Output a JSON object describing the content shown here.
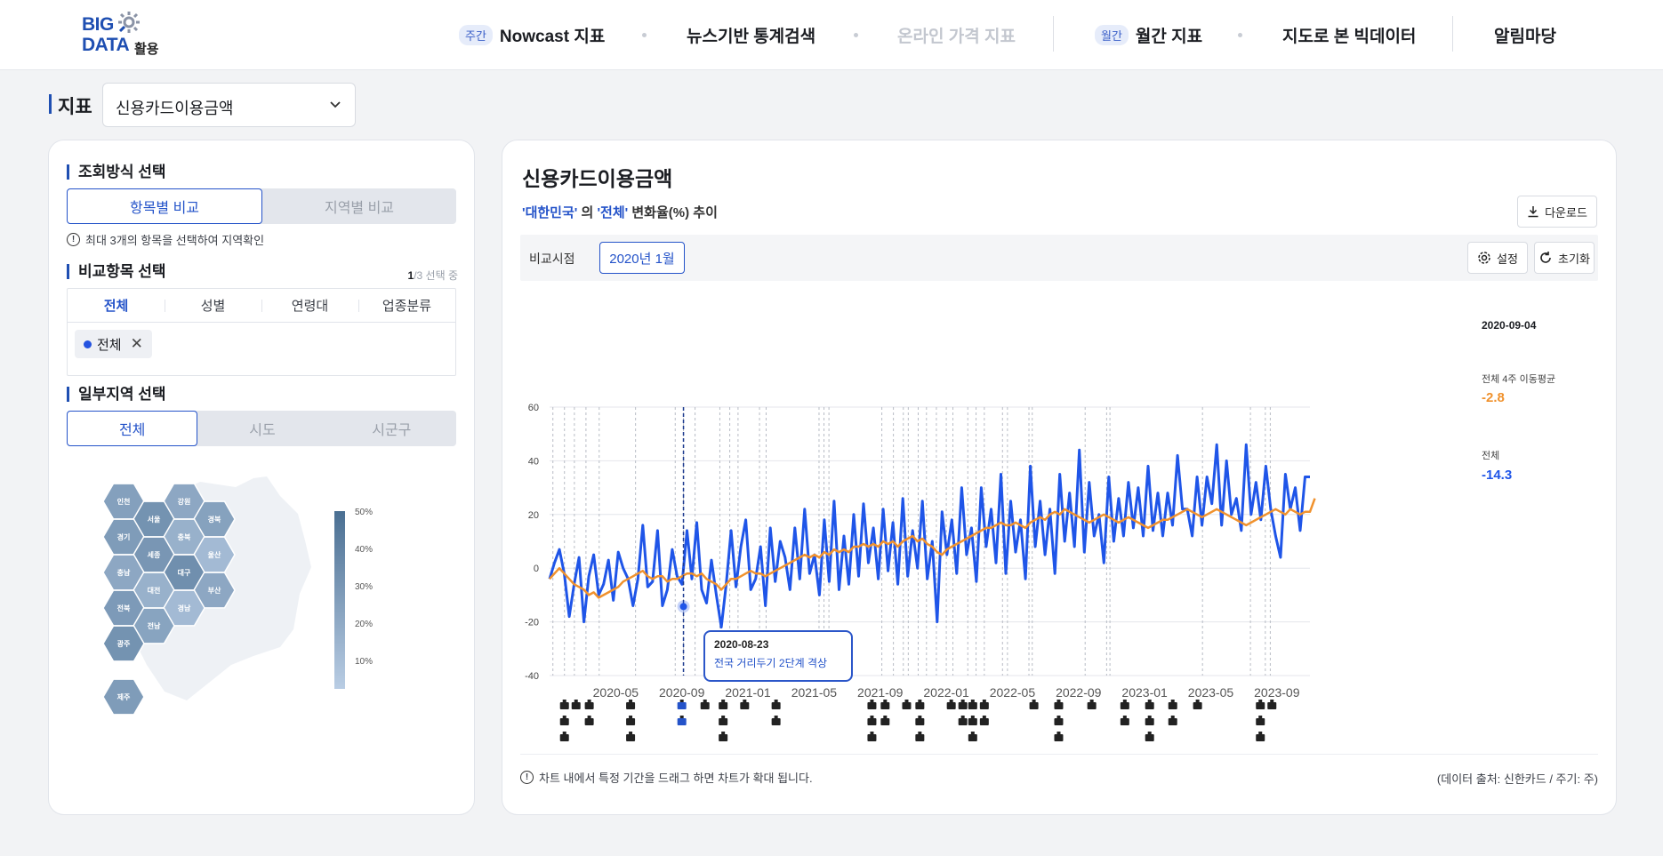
{
  "header": {
    "logo_big": "BIG",
    "logo_data": "DATA",
    "logo_suffix": "활용",
    "nav": [
      {
        "pill": "주간",
        "label": "Nowcast 지표"
      },
      {
        "label": "뉴스기반 통계검색"
      },
      {
        "label": "온라인 가격 지표"
      },
      {
        "pill": "월간",
        "label": "월간 지표"
      },
      {
        "label": "지도로 본 빅데이터"
      },
      {
        "label": "알림마당"
      }
    ]
  },
  "indicator": {
    "label": "지표",
    "selected": "신용카드이용금액"
  },
  "left": {
    "query_title": "조회방식 선택",
    "query_options": [
      "항목별 비교",
      "지역별 비교"
    ],
    "query_note": "최대 3개의 항목을 선택하여 지역확인",
    "compare_title": "비교항목 선택",
    "count_current": "1",
    "count_rest": "/3 선택 중",
    "compare_tabs": [
      "전체",
      "성별",
      "연령대",
      "업종분류"
    ],
    "chip_label": "전체",
    "region_title": "일부지역 선택",
    "region_options": [
      "전체",
      "시도",
      "시군구"
    ],
    "map": {
      "regions": [
        {
          "name": "인천",
          "level": 0.48
        },
        {
          "name": "강원",
          "level": 0.4
        },
        {
          "name": "서울",
          "level": 0.62
        },
        {
          "name": "경북",
          "level": 0.46
        },
        {
          "name": "경기",
          "level": 0.52
        },
        {
          "name": "충북",
          "level": 0.3
        },
        {
          "name": "세종",
          "level": 0.58
        },
        {
          "name": "울산",
          "level": 0.2
        },
        {
          "name": "충남",
          "level": 0.4
        },
        {
          "name": "대구",
          "level": 0.66
        },
        {
          "name": "대전",
          "level": 0.3
        },
        {
          "name": "부산",
          "level": 0.4
        },
        {
          "name": "전북",
          "level": 0.54
        },
        {
          "name": "경남",
          "level": 0.2
        },
        {
          "name": "전남",
          "level": 0.44
        },
        {
          "name": "광주",
          "level": 0.62
        },
        {
          "name": "제주",
          "level": 0.52
        }
      ],
      "scale_labels": [
        "50%",
        "40%",
        "30%",
        "20%",
        "10%"
      ]
    }
  },
  "right": {
    "title": "신용카드이용금액",
    "subtitle_region": "'대한민국'",
    "subtitle_mid": " 의 ",
    "subtitle_item": "'전체'",
    "subtitle_rest": " 변화율(%) 추이",
    "download_label": "다운로드",
    "compare_label": "비교시점",
    "compare_value": "2020년 1월",
    "settings_label": "설정",
    "reset_label": "초기화",
    "tooltip_date": "2020-08-23",
    "tooltip_text": "전국 거리두기 2단계 격상",
    "legend_date": "2020-09-04",
    "legend_ma_label": "전체 4주 이동평균",
    "legend_ma_value": "-2.8",
    "legend_total_label": "전체",
    "legend_total_value": "-14.3",
    "footer_note": "차트 내에서 특정 기간을 드래그 하면 차트가 확대 됩니다.",
    "footer_source": "(데이터 출처: 신한카드 / 주기: 주)"
  },
  "colors": {
    "accent": "#2453c9",
    "weekly": "#1f55e8",
    "moving_avg": "#f0922e",
    "map_high": "#4a6f92",
    "map_low": "#b9cde4"
  },
  "chart_data": {
    "type": "line",
    "xlabel": "",
    "ylabel": "",
    "ylim": [
      -40,
      60
    ],
    "yticks": [
      60,
      40,
      20,
      0,
      -20,
      -40
    ],
    "xtick_labels": [
      "2020-05",
      "2020-09",
      "2021-01",
      "2021-05",
      "2021-09",
      "2022-01",
      "2022-05",
      "2022-09",
      "2023-01",
      "2023-05",
      "2023-09"
    ],
    "x_start": "2020-01",
    "x_end": "2023-11",
    "series": [
      {
        "name": "전체",
        "color": "#1f55e8",
        "values": [
          -4,
          2,
          7,
          -2,
          -18,
          -6,
          4,
          -20,
          -3,
          5,
          -10,
          -6,
          3,
          -12,
          6,
          0,
          -4,
          -14,
          -4,
          16,
          -7,
          -5,
          14,
          -14,
          -8,
          7,
          -3,
          -6,
          14,
          -4,
          17,
          -8,
          -13,
          3,
          -10,
          -22,
          -6,
          14,
          -7,
          8,
          18,
          -8,
          -4,
          8,
          -14,
          15,
          -5,
          10,
          4,
          -8,
          15,
          -4,
          22,
          -2,
          5,
          -10,
          18,
          -5,
          25,
          -8,
          12,
          -6,
          20,
          -3,
          24,
          2,
          15,
          -4,
          22,
          -1,
          17,
          -6,
          26,
          -3,
          14,
          0,
          25,
          -4,
          10,
          -20,
          21,
          5,
          18,
          -2,
          30,
          5,
          15,
          -5,
          30,
          8,
          22,
          2,
          35,
          -2,
          25,
          6,
          18,
          -4,
          38,
          8,
          25,
          5,
          22,
          -2,
          35,
          10,
          28,
          8,
          44,
          6,
          32,
          12,
          20,
          2,
          34,
          10,
          26,
          12,
          32,
          15,
          30,
          12,
          38,
          14,
          28,
          12,
          28,
          16,
          42,
          22,
          22,
          12,
          34,
          16,
          34,
          24,
          46,
          16,
          40,
          20,
          26,
          14,
          46,
          20,
          32,
          18,
          38,
          22,
          12,
          4,
          35,
          22,
          30,
          14,
          34,
          34
        ],
        "highlighted_point": {
          "x": "2020-09-04",
          "y": -14.3
        }
      },
      {
        "name": "전체 4주 이동평균",
        "color": "#f0922e",
        "values": [
          -4,
          -2,
          0,
          -2,
          -4,
          -6,
          -7,
          -8,
          -10,
          -9,
          -11,
          -10,
          -9,
          -8,
          -7,
          -5,
          -4,
          -3,
          -2,
          -1,
          -3,
          -4,
          -3,
          -3,
          -5,
          -4,
          -4,
          -3,
          -2,
          -2,
          -3,
          -2,
          -4,
          -5,
          -6,
          -8,
          -6,
          -4,
          -4,
          -3,
          -2,
          -1,
          -2,
          -2,
          -3,
          -2,
          -1,
          0,
          1,
          2,
          3,
          4,
          5,
          4,
          5,
          4,
          6,
          5,
          7,
          6,
          7,
          6,
          8,
          8,
          9,
          8,
          9,
          8,
          10,
          9,
          10,
          8,
          10,
          11,
          12,
          10,
          11,
          9,
          8,
          6,
          5,
          7,
          8,
          9,
          10,
          11,
          12,
          13,
          14,
          15,
          15,
          16,
          17,
          16,
          16,
          17,
          16,
          15,
          17,
          18,
          19,
          18,
          20,
          21,
          20,
          22,
          21,
          20,
          19,
          18,
          17,
          18,
          19,
          20,
          19,
          18,
          17,
          18,
          19,
          18,
          17,
          16,
          15,
          16,
          17,
          18,
          18,
          19,
          20,
          21,
          22,
          21,
          20,
          19,
          20,
          21,
          22,
          21,
          20,
          19,
          18,
          17,
          16,
          17,
          18,
          19,
          20,
          21,
          22,
          21,
          20,
          22,
          21,
          20,
          21,
          21,
          26
        ]
      }
    ],
    "event_rows": [
      [
        "",
        "",
        "",
        ""
      ],
      [
        "",
        "",
        "",
        ""
      ]
    ]
  }
}
